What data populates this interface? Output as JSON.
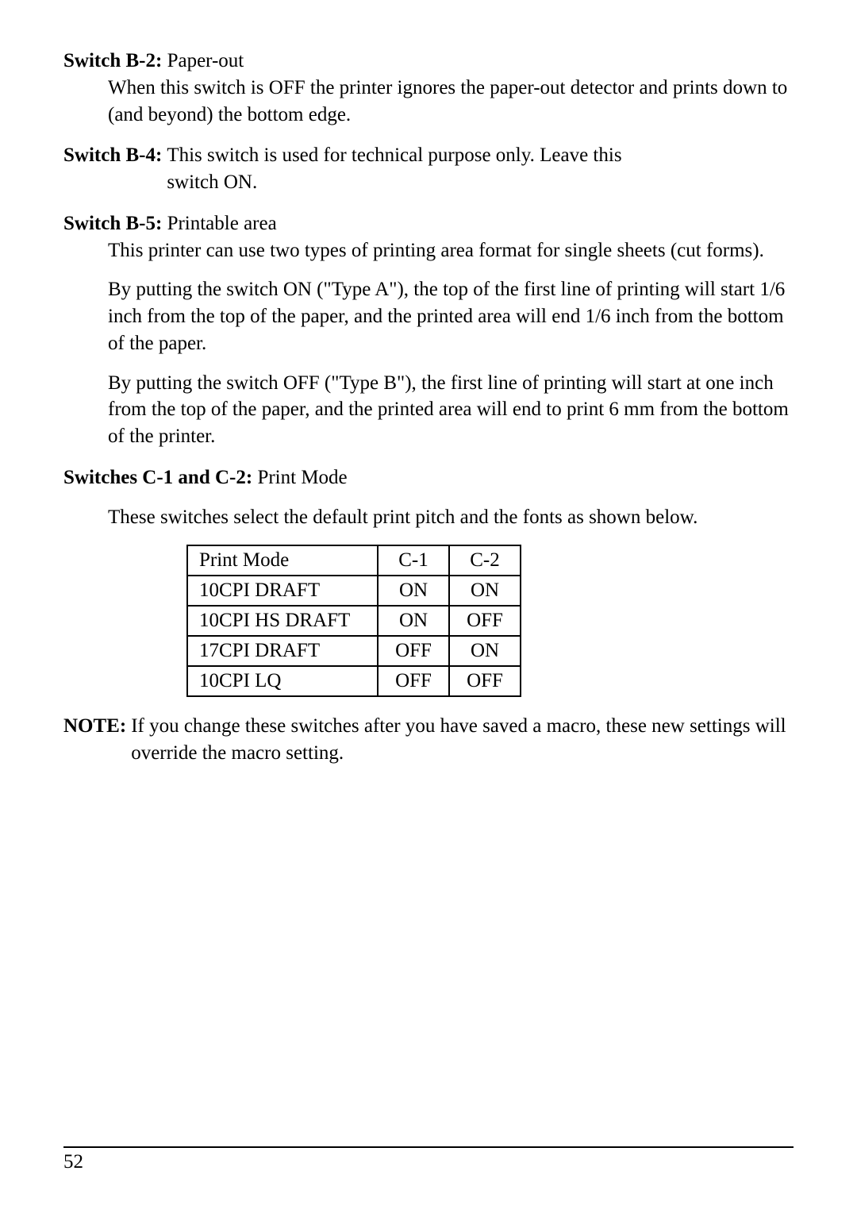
{
  "b2": {
    "label": "Switch B-2:",
    "title": "Paper-out",
    "body": "When this switch is OFF the printer ignores the paper-out detector and prints down to (and beyond) the bottom edge."
  },
  "b4": {
    "label": "Switch B-4:",
    "body1": "This switch is used for technical purpose only. Leave this",
    "body2": "switch ON."
  },
  "b5": {
    "label": "Switch B-5:",
    "title": "Printable area",
    "p1": "This printer can use two types of printing area format for single sheets (cut forms).",
    "p2": "By putting the switch ON (\"Type A\"), the top of the first line of printing will start 1/6 inch from the top of the paper, and the printed area will end 1/6 inch from the bottom of the paper.",
    "p3": "By putting the switch OFF (\"Type B\"), the first line of printing will start at one inch from the top of the paper, and the printed area will end to print 6 mm from the bottom of the printer."
  },
  "c12": {
    "label": "Switches C-1 and C-2:",
    "title": "Print Mode",
    "body": "These switches select the default print pitch and the fonts as shown below."
  },
  "table": {
    "header": {
      "mode": "Print Mode",
      "c1": "C-1",
      "c2": "C-2"
    },
    "rows": [
      {
        "mode": "10CPI DRAFT",
        "c1": "ON",
        "c2": "ON"
      },
      {
        "mode": "10CPI HS DRAFT",
        "c1": "ON",
        "c2": "OFF"
      },
      {
        "mode": "17CPI DRAFT",
        "c1": "OFF",
        "c2": "ON"
      },
      {
        "mode": "10CPI LQ",
        "c1": "OFF",
        "c2": "OFF"
      }
    ]
  },
  "note": {
    "label": "NOTE:",
    "body": "If you change these switches after you have saved a macro, these new settings will override the macro setting."
  },
  "page": "52"
}
